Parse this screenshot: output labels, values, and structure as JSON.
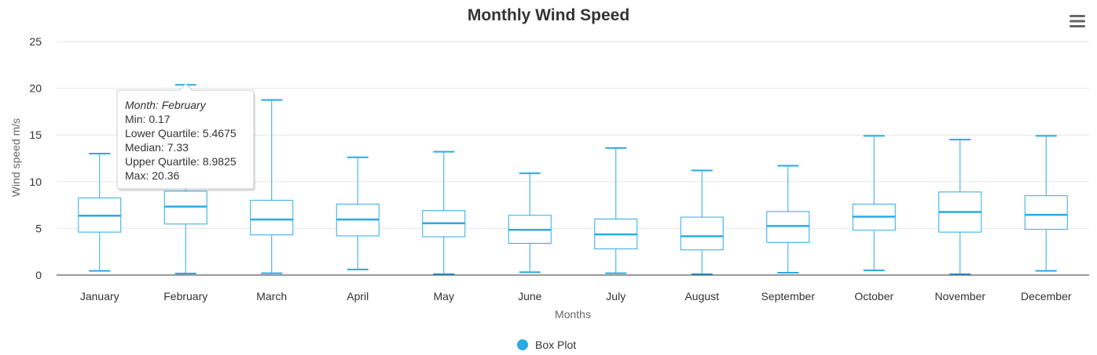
{
  "chart_data": {
    "type": "boxplot",
    "title": "Monthly Wind Speed",
    "xlabel": "Months",
    "ylabel": "Wind speed m/s",
    "ylim": [
      0,
      25
    ],
    "yticks": [
      0,
      5,
      10,
      15,
      20,
      25
    ],
    "grid": true,
    "legend_placement": "bottom-center",
    "categories": [
      "January",
      "February",
      "March",
      "April",
      "May",
      "June",
      "July",
      "August",
      "September",
      "October",
      "November",
      "December"
    ],
    "series": [
      {
        "name": "Box Plot",
        "color": "#2aaae5",
        "boxes": [
          {
            "min": 0.45,
            "q1": 4.6,
            "median": 6.35,
            "q3": 8.25,
            "max": 13.0
          },
          {
            "min": 0.17,
            "q1": 5.4675,
            "median": 7.33,
            "q3": 8.9825,
            "max": 20.36
          },
          {
            "min": 0.2,
            "q1": 4.3,
            "median": 5.95,
            "q3": 8.0,
            "max": 18.75
          },
          {
            "min": 0.6,
            "q1": 4.2,
            "median": 5.95,
            "q3": 7.6,
            "max": 12.6
          },
          {
            "min": 0.1,
            "q1": 4.1,
            "median": 5.55,
            "q3": 6.9,
            "max": 13.2
          },
          {
            "min": 0.3,
            "q1": 3.4,
            "median": 4.85,
            "q3": 6.4,
            "max": 10.9
          },
          {
            "min": 0.2,
            "q1": 2.8,
            "median": 4.35,
            "q3": 6.0,
            "max": 13.6
          },
          {
            "min": 0.1,
            "q1": 2.7,
            "median": 4.15,
            "q3": 6.2,
            "max": 11.2
          },
          {
            "min": 0.25,
            "q1": 3.5,
            "median": 5.25,
            "q3": 6.8,
            "max": 11.7
          },
          {
            "min": 0.5,
            "q1": 4.8,
            "median": 6.25,
            "q3": 7.6,
            "max": 14.9
          },
          {
            "min": 0.1,
            "q1": 4.6,
            "median": 6.75,
            "q3": 8.9,
            "max": 14.5
          },
          {
            "min": 0.45,
            "q1": 4.9,
            "median": 6.45,
            "q3": 8.5,
            "max": 14.9
          }
        ]
      }
    ],
    "tooltip": {
      "category_index": 1,
      "lines": [
        "Month: February",
        "Min: 0.17",
        "Lower Quartile: 5.4675",
        "Median: 7.33",
        "Upper Quartile: 8.9825",
        "Max: 20.36"
      ]
    }
  },
  "menu_icon": "hamburger-menu-icon"
}
